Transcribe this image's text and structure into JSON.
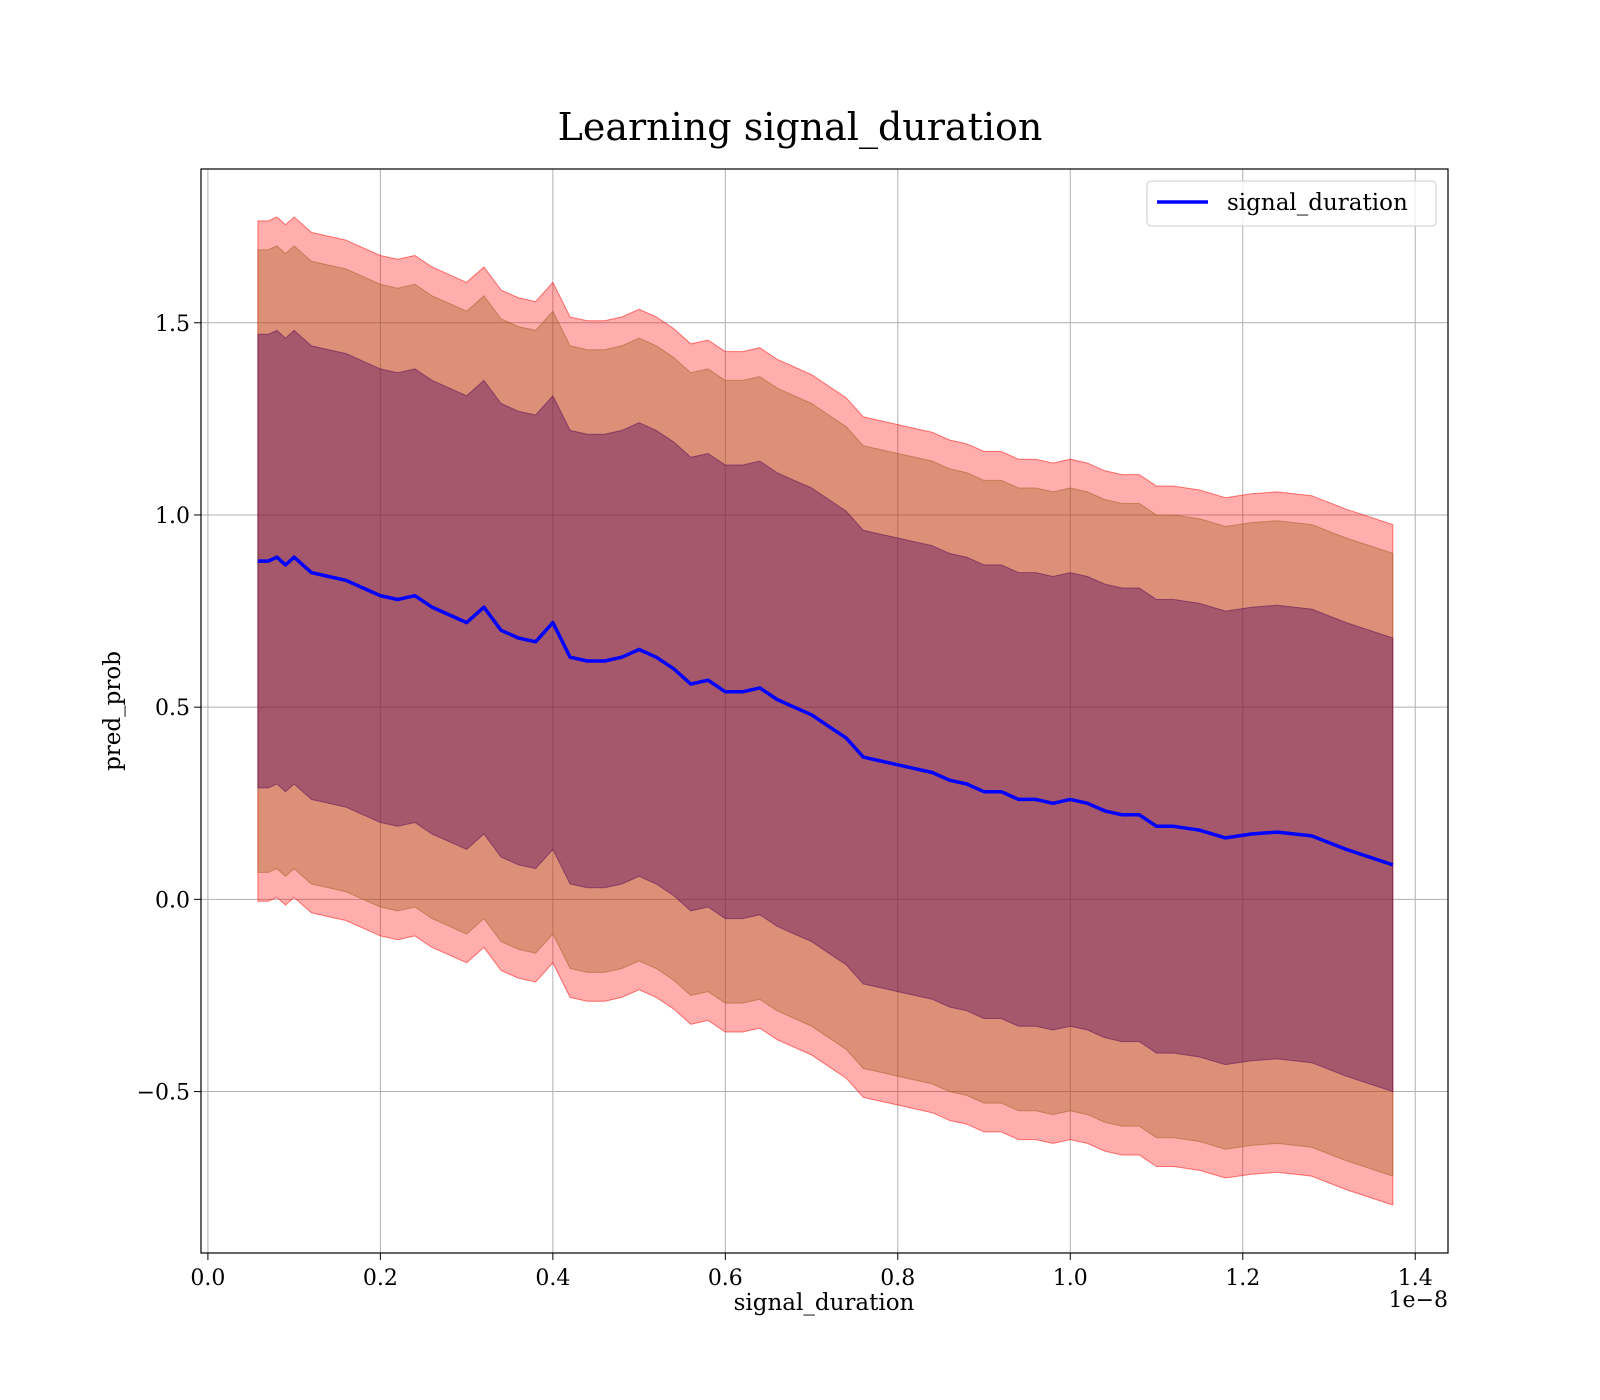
{
  "chart_data": {
    "type": "line",
    "title": "Learning signal_duration",
    "xlabel": "signal_duration",
    "ylabel": "pred_prob",
    "x_offset_label": "1e−8",
    "xlim": [
      -0.008,
      1.438
    ],
    "ylim": [
      -0.92,
      1.9
    ],
    "x_ticks": [
      0.0,
      0.2,
      0.4,
      0.6,
      0.8,
      1.0,
      1.2,
      1.4
    ],
    "x_tick_labels": [
      "0.0",
      "0.2",
      "0.4",
      "0.6",
      "0.8",
      "1.0",
      "1.2",
      "1.4"
    ],
    "y_ticks": [
      -0.5,
      0.0,
      0.5,
      1.0,
      1.5
    ],
    "y_tick_labels": [
      "−0.5",
      "0.0",
      "0.5",
      "1.0",
      "1.5"
    ],
    "grid": true,
    "legend_position": "top-right",
    "colors": {
      "line": "#0000ff",
      "band": "#ff0000",
      "band_inner": "#5a0a5a",
      "band_mid": "#a06020"
    },
    "series": [
      {
        "name": "signal_duration",
        "x": [
          0.058,
          0.07,
          0.08,
          0.09,
          0.1,
          0.12,
          0.14,
          0.16,
          0.18,
          0.2,
          0.22,
          0.24,
          0.26,
          0.28,
          0.3,
          0.32,
          0.34,
          0.36,
          0.38,
          0.4,
          0.42,
          0.44,
          0.46,
          0.48,
          0.5,
          0.52,
          0.54,
          0.56,
          0.58,
          0.6,
          0.62,
          0.64,
          0.66,
          0.68,
          0.7,
          0.72,
          0.74,
          0.76,
          0.78,
          0.8,
          0.82,
          0.84,
          0.86,
          0.88,
          0.9,
          0.92,
          0.94,
          0.96,
          0.98,
          1.0,
          1.02,
          1.04,
          1.06,
          1.08,
          1.1,
          1.12,
          1.15,
          1.18,
          1.21,
          1.24,
          1.28,
          1.32,
          1.374
        ],
        "y": [
          0.88,
          0.88,
          0.89,
          0.87,
          0.89,
          0.85,
          0.84,
          0.83,
          0.81,
          0.79,
          0.78,
          0.79,
          0.76,
          0.74,
          0.72,
          0.76,
          0.7,
          0.68,
          0.67,
          0.72,
          0.63,
          0.62,
          0.62,
          0.63,
          0.65,
          0.63,
          0.6,
          0.56,
          0.57,
          0.54,
          0.54,
          0.55,
          0.52,
          0.5,
          0.48,
          0.45,
          0.42,
          0.37,
          0.36,
          0.35,
          0.34,
          0.33,
          0.31,
          0.3,
          0.28,
          0.28,
          0.26,
          0.26,
          0.25,
          0.26,
          0.25,
          0.23,
          0.22,
          0.22,
          0.19,
          0.19,
          0.18,
          0.16,
          0.17,
          0.175,
          0.165,
          0.13,
          0.09
        ],
        "band_half_widths": [
          0.59,
          0.81,
          0.885
        ]
      }
    ]
  }
}
